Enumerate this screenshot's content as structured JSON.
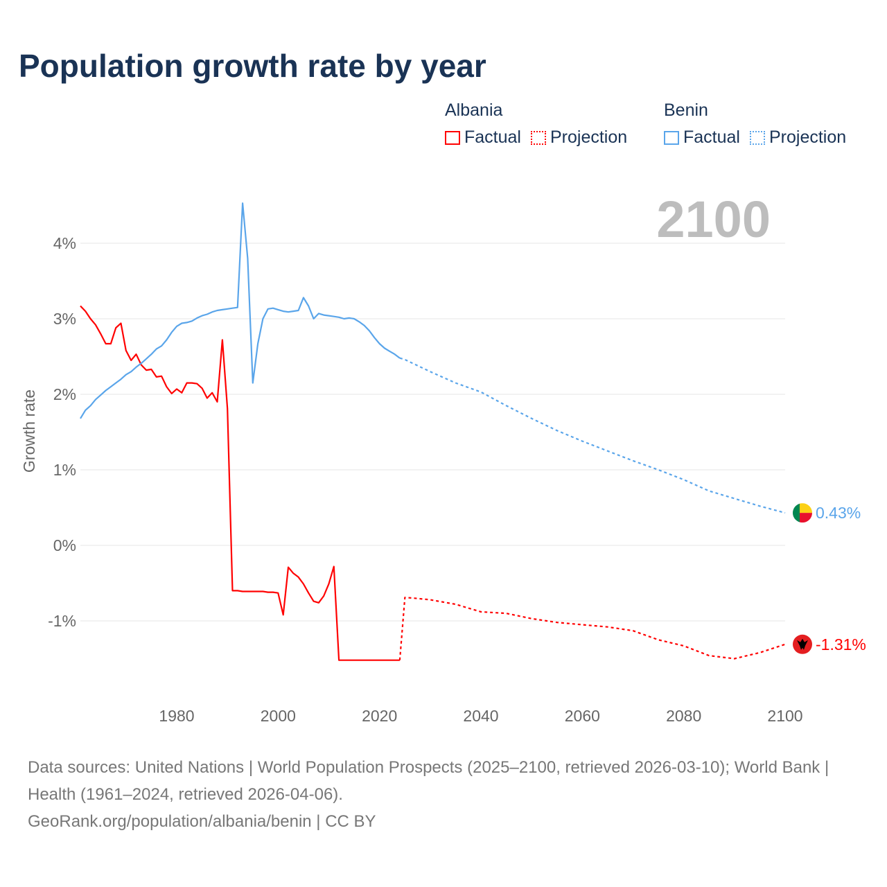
{
  "title": "Population growth rate by year",
  "year_label": "2100",
  "legend": {
    "groups": [
      {
        "name": "Albania",
        "factual": "Factual",
        "projection": "Projection",
        "color": "#ff0000"
      },
      {
        "name": "Benin",
        "factual": "Factual",
        "projection": "Projection",
        "color": "#5aa5ea"
      }
    ]
  },
  "end_labels": {
    "benin": "0.43%",
    "albania": "-1.31%"
  },
  "footer": {
    "sources": "Data sources: United Nations | World Population Prospects (2025–2100, retrieved 2026-03-10); World Bank | Health (1961–2024, retrieved 2026-04-06).",
    "credit": "GeoRank.org/population/albania/benin | CC BY"
  },
  "chart_data": {
    "type": "line",
    "title": "Population growth rate by year",
    "ylabel": "Growth rate",
    "xlabel": "",
    "xlim": [
      1961,
      2100
    ],
    "ylim": [
      -1.9,
      4.6
    ],
    "xticks": [
      1980,
      2000,
      2020,
      2040,
      2060,
      2080,
      2100
    ],
    "xtick_labels": [
      "1980",
      "2000",
      "2020",
      "2040",
      "2060",
      "2080",
      "2100"
    ],
    "yticks": [
      4,
      3,
      2,
      1,
      0,
      -1
    ],
    "ytick_labels": [
      "4%",
      "3%",
      "2%",
      "1%",
      "0%",
      "-1%"
    ],
    "grid": true,
    "legend_position": "top-right",
    "series": [
      {
        "name": "Albania Factual",
        "color": "#ff0000",
        "style": "solid",
        "x_start": 1961,
        "values": [
          3.17,
          3.1,
          3.0,
          2.92,
          2.8,
          2.67,
          2.67,
          2.88,
          2.94,
          2.58,
          2.45,
          2.53,
          2.39,
          2.32,
          2.33,
          2.23,
          2.24,
          2.1,
          2.01,
          2.07,
          2.02,
          2.15,
          2.15,
          2.14,
          2.08,
          1.95,
          2.02,
          1.9,
          2.72,
          1.81,
          -0.6,
          -0.6,
          -0.61,
          -0.61,
          -0.61,
          -0.61,
          -0.61,
          -0.62,
          -0.62,
          -0.63,
          -0.92,
          -0.29,
          -0.37,
          -0.42,
          -0.51,
          -0.63,
          -0.74,
          -0.76,
          -0.67,
          -0.51,
          -0.28,
          -1.52,
          -1.52,
          -1.52,
          -1.52,
          -1.52,
          -1.52,
          -1.52,
          -1.52,
          -1.52,
          -1.52,
          -1.52,
          -1.52,
          -1.52
        ]
      },
      {
        "name": "Albania Projection",
        "color": "#ff0000",
        "style": "dotted",
        "x": [
          2024,
          2025,
          2027,
          2030,
          2035,
          2040,
          2045,
          2050,
          2055,
          2060,
          2065,
          2070,
          2075,
          2080,
          2085,
          2090,
          2095,
          2100
        ],
        "values": [
          -1.52,
          -0.69,
          -0.7,
          -0.72,
          -0.78,
          -0.88,
          -0.9,
          -0.97,
          -1.02,
          -1.05,
          -1.08,
          -1.13,
          -1.25,
          -1.33,
          -1.46,
          -1.5,
          -1.42,
          -1.31
        ]
      },
      {
        "name": "Benin Factual",
        "color": "#5aa5ea",
        "style": "solid",
        "x_start": 1961,
        "values": [
          1.68,
          1.79,
          1.85,
          1.93,
          1.99,
          2.05,
          2.1,
          2.15,
          2.2,
          2.26,
          2.3,
          2.36,
          2.41,
          2.47,
          2.53,
          2.6,
          2.64,
          2.72,
          2.82,
          2.9,
          2.94,
          2.95,
          2.97,
          3.01,
          3.04,
          3.06,
          3.09,
          3.11,
          3.12,
          3.13,
          3.14,
          3.15,
          4.53,
          3.8,
          2.15,
          2.67,
          3.0,
          3.13,
          3.14,
          3.12,
          3.1,
          3.09,
          3.1,
          3.11,
          3.28,
          3.17,
          3.0,
          3.07,
          3.05,
          3.04,
          3.03,
          3.02,
          3.0,
          3.01,
          3.0,
          2.96,
          2.91,
          2.84,
          2.75,
          2.67,
          2.61,
          2.57,
          2.53,
          2.48
        ]
      },
      {
        "name": "Benin Projection",
        "color": "#5aa5ea",
        "style": "dotted",
        "x": [
          2024,
          2025,
          2030,
          2035,
          2040,
          2045,
          2050,
          2055,
          2060,
          2065,
          2070,
          2075,
          2080,
          2085,
          2090,
          2095,
          2100
        ],
        "values": [
          2.48,
          2.46,
          2.3,
          2.15,
          2.03,
          1.85,
          1.68,
          1.52,
          1.38,
          1.25,
          1.12,
          1.0,
          0.87,
          0.72,
          0.62,
          0.52,
          0.43
        ]
      }
    ]
  }
}
